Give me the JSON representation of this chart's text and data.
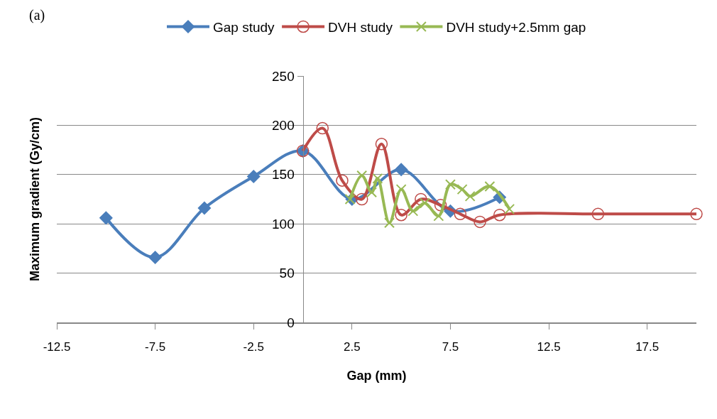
{
  "chart_data": {
    "type": "line",
    "xlabel": "Gap (mm)",
    "ylabel": "Maximum gradient (Gy/cm)",
    "annotations": [
      "(a)"
    ],
    "xlim": [
      -12.5,
      20
    ],
    "xticks": [
      -12.5,
      -7.5,
      -2.5,
      2.5,
      7.5,
      12.5,
      17.5
    ],
    "ylim": [
      0,
      250
    ],
    "yticks": [
      0,
      50,
      100,
      150,
      200,
      250
    ],
    "grid": "y",
    "legend": "top",
    "line_style": "solid",
    "series": [
      {
        "name": "Gap study",
        "color": "#4a7ebb",
        "marker": "diamond",
        "x": [
          -10,
          -7.5,
          -5,
          -2.5,
          0,
          2.5,
          5,
          7.5,
          10
        ],
        "values": [
          106,
          66,
          116,
          148,
          174,
          125,
          155,
          113,
          127
        ]
      },
      {
        "name": "DVH study",
        "color": "#be4b48",
        "marker": "circle-open",
        "x": [
          0,
          1,
          2,
          3,
          4,
          5,
          6,
          7,
          8,
          9,
          10,
          15,
          20
        ],
        "values": [
          174,
          197,
          144,
          125,
          181,
          109,
          125,
          119,
          110,
          102,
          109,
          110,
          110
        ]
      },
      {
        "name": "DVH study+2.5mm gap",
        "color": "#98b954",
        "marker": "cross",
        "x": [
          2.4,
          3,
          3.5,
          3.8,
          4.4,
          5,
          5.6,
          6.2,
          6.9,
          7.5,
          8.1,
          8.5,
          9.5,
          10.5
        ],
        "values": [
          125,
          149,
          132,
          146,
          101,
          135,
          113,
          121,
          108,
          140,
          135,
          128,
          138,
          115
        ]
      }
    ]
  }
}
